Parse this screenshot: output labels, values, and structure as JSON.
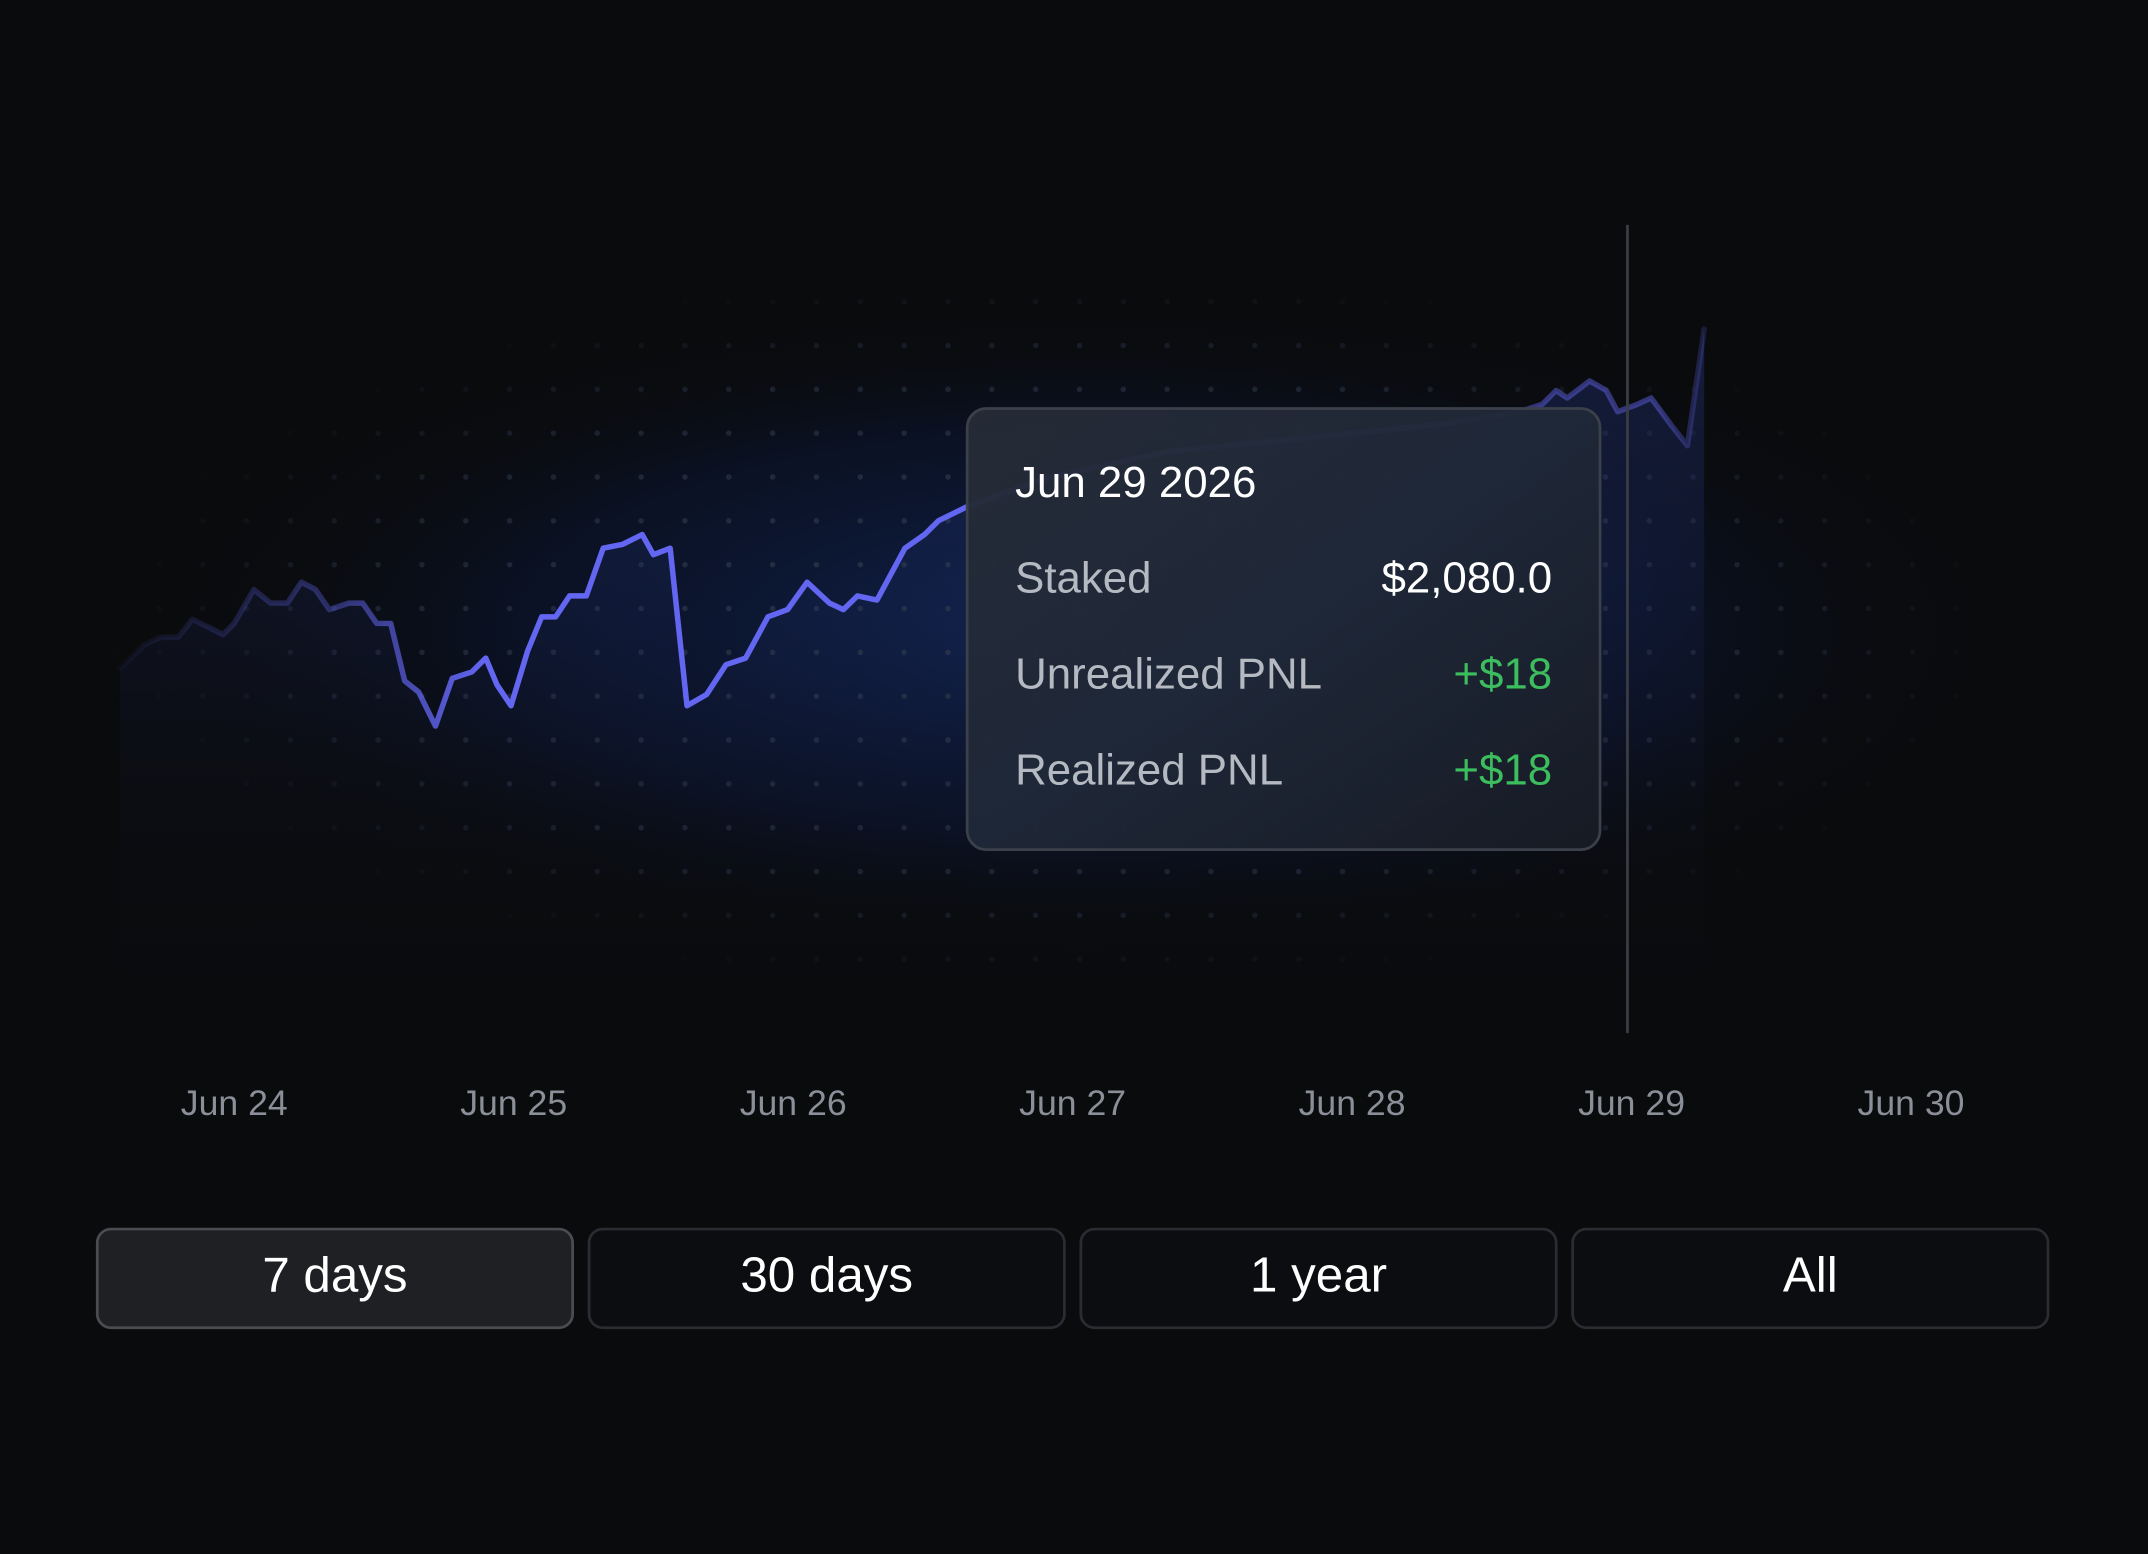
{
  "chart_data": {
    "type": "line",
    "color": "#6366f1",
    "x": [
      -0.41,
      -0.32,
      -0.26,
      -0.2,
      -0.15,
      -0.09,
      -0.04,
      0.0,
      0.07,
      0.13,
      0.19,
      0.24,
      0.29,
      0.34,
      0.41,
      0.46,
      0.51,
      0.56,
      0.61,
      0.66,
      0.72,
      0.78,
      0.85,
      0.9,
      0.94,
      0.99,
      1.05,
      1.1,
      1.15,
      1.2,
      1.26,
      1.32,
      1.39,
      1.46,
      1.5,
      1.56,
      1.62,
      1.69,
      1.76,
      1.83,
      1.91,
      1.98,
      2.05,
      2.13,
      2.18,
      2.23,
      2.3,
      2.4,
      2.47,
      2.52,
      2.62,
      2.89,
      3.33,
      3.82,
      4.31,
      4.6,
      4.68,
      4.73,
      4.77,
      4.85,
      4.91,
      4.95,
      5.02,
      5.07,
      5.14,
      5.2,
      5.26
    ],
    "values": [
      45.1,
      48.1,
      49.0,
      49.0,
      51.2,
      50.2,
      49.3,
      50.7,
      54.9,
      53.2,
      53.2,
      55.8,
      54.9,
      52.4,
      53.2,
      53.2,
      50.7,
      50.7,
      43.6,
      42.2,
      38.0,
      43.9,
      44.7,
      46.4,
      43.1,
      40.5,
      47.3,
      51.5,
      51.5,
      54.1,
      54.1,
      60.0,
      60.5,
      61.7,
      59.2,
      60.0,
      40.5,
      41.9,
      45.6,
      46.4,
      51.5,
      52.4,
      55.8,
      53.2,
      52.4,
      54.1,
      53.6,
      60.0,
      61.7,
      63.4,
      65.1,
      68.5,
      71.9,
      73.6,
      75.3,
      76.9,
      77.8,
      79.5,
      78.6,
      80.7,
      79.5,
      76.9,
      77.8,
      78.6,
      75.3,
      72.7,
      87.1
    ],
    "xlim": [
      -0.5,
      6.5
    ],
    "ylim": [
      0,
      100
    ],
    "xticks": [
      {
        "value": 0,
        "label": "Jun 24"
      },
      {
        "value": 1,
        "label": "Jun 25"
      },
      {
        "value": 2,
        "label": "Jun 26"
      },
      {
        "value": 3,
        "label": "Jun 27"
      },
      {
        "value": 4,
        "label": "Jun 28"
      },
      {
        "value": 5,
        "label": "Jun 29"
      },
      {
        "value": 6,
        "label": "Jun 30"
      }
    ]
  },
  "tooltip": {
    "title": "Jun 29 2026",
    "rows": [
      {
        "label": "Staked",
        "value": "$2,080.0",
        "color": "#ffffff"
      },
      {
        "label": "Unrealized PNL",
        "value": "+$18",
        "color": "#3dbe5e"
      },
      {
        "label": "Realized PNL",
        "value": "+$18",
        "color": "#3dbe5e"
      }
    ]
  },
  "range_buttons": {
    "options": [
      "7 days",
      "30 days",
      "1 year",
      "All"
    ],
    "selected": 0
  }
}
